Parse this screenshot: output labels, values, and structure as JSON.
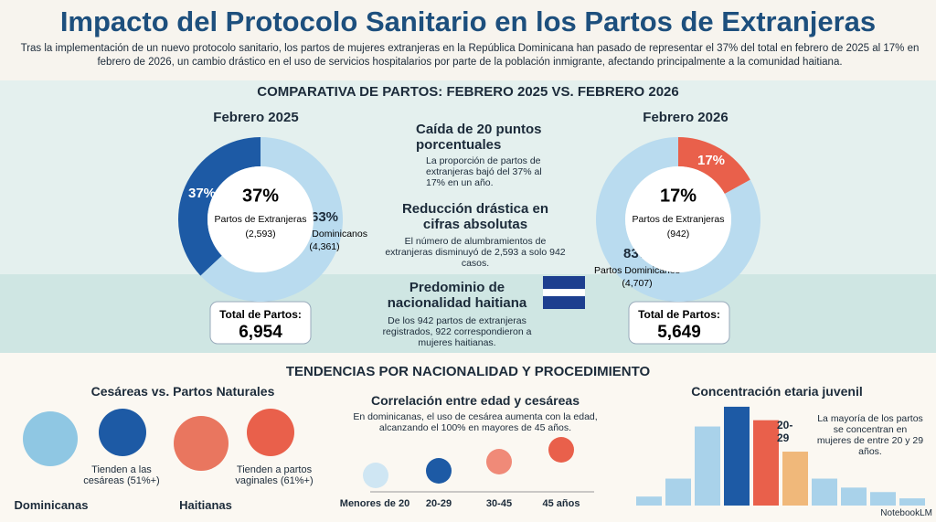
{
  "header": {
    "title": "Impacto del Protocolo Sanitario en los Partos de Extranjeras",
    "intro": "Tras la implementación de un nuevo protocolo sanitario, los partos de mujeres extranjeras en la República Dominicana han pasado de representar el 37% del total en febrero de 2025 al 17% en febrero de 2026, un cambio drástico en el uso de servicios hospitalarios por parte de la población inmigrante, afectando principalmente a la comunidad haitiana."
  },
  "comparison": {
    "title": "COMPARATIVA DE PARTOS: FEBRERO 2025 VS. FEBRERO 2026",
    "points": [
      {
        "heading": "Caída de 20 puntos porcentuales",
        "body": "La proporción de partos de extranjeras bajó del 37% al 17% en un año."
      },
      {
        "heading": "Reducción drástica en cifras absolutas",
        "body": "El número de alumbramientos de extranjeras disminuyó de 2,593 a solo 942 casos."
      },
      {
        "heading": "Predominio de nacionalidad haitiana",
        "body": "De los 942 partos de extranjeras registrados, 922 correspondieron a mujeres haitianas."
      }
    ]
  },
  "trends": {
    "title": "TENDENCIAS POR NACIONALIDAD Y PROCEDIMIENTO",
    "procedure": {
      "title": "Cesáreas vs. Partos Naturales",
      "groups": [
        {
          "name": "Dominicanas",
          "note": "Tienden a las cesáreas (51%+)"
        },
        {
          "name": "Haitianas",
          "note": "Tienden a partos vaginales (61%+)"
        }
      ]
    },
    "age": {
      "title": "Correlación entre edad y cesáreas",
      "body": "En dominicanas, el uso de cesárea aumenta con la edad, alcanzando el 100% en mayores de 45 años.",
      "categories": [
        "Menores de 20",
        "20-29",
        "30-45",
        "45 años"
      ]
    }
  },
  "chart_data": [
    {
      "type": "pie",
      "title": "Febrero 2025",
      "categories": [
        "Partos de Extranjeras",
        "Partos Dominicanos"
      ],
      "values": [
        37,
        63
      ],
      "value_labels": [
        "37%",
        "63%"
      ],
      "count_labels": [
        "(2,593)",
        "(4,361)"
      ],
      "colors": [
        "#1d5aa5",
        "#b9dbef"
      ],
      "total_label": "Total de Partos:",
      "total": "6,954"
    },
    {
      "type": "pie",
      "title": "Febrero 2026",
      "categories": [
        "Partos de Extranjeras",
        "Partos Dominicanos"
      ],
      "values": [
        17,
        83
      ],
      "value_labels": [
        "17%",
        "83%"
      ],
      "count_labels": [
        "(942)",
        "(4,707)"
      ],
      "colors": [
        "#e9604b",
        "#b9dbef"
      ],
      "total_label": "Total de Partos:",
      "total": "5,649"
    },
    {
      "type": "bar",
      "title": "Concentración etaria juvenil",
      "values": [
        10,
        30,
        88,
        110,
        95,
        60,
        30,
        20,
        15,
        8
      ],
      "colors": [
        "#a9d2ea",
        "#a9d2ea",
        "#a9d2ea",
        "#1d5aa5",
        "#e9604b",
        "#f0b87a",
        "#a9d2ea",
        "#a9d2ea",
        "#a9d2ea",
        "#a9d2ea"
      ],
      "ylim": [
        0,
        115
      ],
      "annotation": "20-29",
      "note": "La mayoría de los partos se concentran en mujeres de entre 20 y 29 años."
    }
  ],
  "footer": "NotebookLM"
}
